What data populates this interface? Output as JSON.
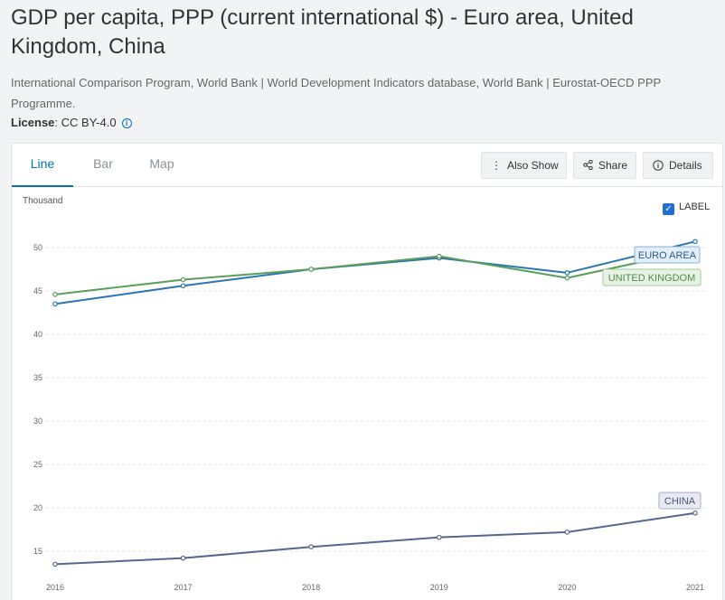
{
  "page": {
    "title": "GDP per capita, PPP (current international $) - Euro area, United Kingdom, China",
    "source": "International Comparison Program, World Bank | World Development Indicators database, World Bank | Eurostat-OECD PPP Programme.",
    "license_label": "License",
    "license_value": ": CC BY-4.0",
    "info_icon": "i"
  },
  "tabs": [
    {
      "label": "Line",
      "active": true
    },
    {
      "label": "Bar",
      "active": false
    },
    {
      "label": "Map",
      "active": false
    }
  ],
  "toolbar": {
    "also_show": "Also Show",
    "share": "Share",
    "details": "Details"
  },
  "label_toggle": {
    "label": "LABEL",
    "checked": true
  },
  "colors": {
    "euro_area": "#2a75b3",
    "united_kingdom": "#5a9e5a",
    "china": "#55678f",
    "accent": "#0071bc"
  },
  "chart_data": {
    "type": "line",
    "unit_label": "Thousand",
    "x": [
      "2016",
      "2017",
      "2018",
      "2019",
      "2020",
      "2021"
    ],
    "ylim": [
      13,
      53
    ],
    "yticks": [
      15,
      20,
      25,
      30,
      35,
      40,
      45,
      50
    ],
    "grid": true,
    "series": [
      {
        "name": "EURO AREA",
        "color": "#2a75b3",
        "label_bg": "#e3eef8",
        "label_border": "#8ab3d6",
        "label_color": "#2a5d8a",
        "values": [
          43.5,
          45.6,
          47.5,
          48.8,
          47.1,
          50.7
        ]
      },
      {
        "name": "UNITED KINGDOM",
        "color": "#5a9e5a",
        "label_bg": "#e8f3e6",
        "label_border": "#9fcc98",
        "label_color": "#4e8a4a",
        "values": [
          44.6,
          46.3,
          47.5,
          49.0,
          46.5,
          49.7
        ]
      },
      {
        "name": "CHINA",
        "color": "#55678f",
        "label_bg": "#e8eaf2",
        "label_border": "#a7aec6",
        "label_color": "#4a577a",
        "values": [
          13.5,
          14.2,
          15.5,
          16.6,
          17.2,
          19.4
        ]
      }
    ]
  }
}
